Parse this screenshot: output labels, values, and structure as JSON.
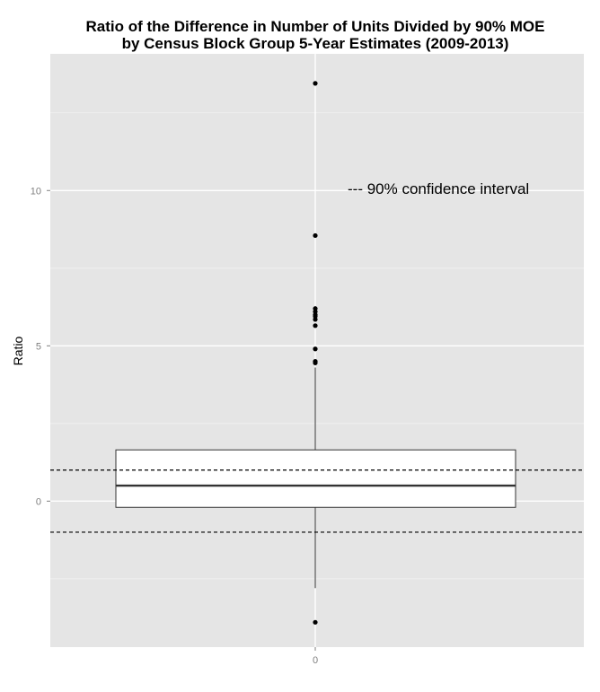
{
  "chart_data": {
    "type": "boxplot",
    "title_lines": [
      "Ratio of the Difference in Number of Units Divided by 90% MOE",
      "by Census Block Group 5-Year Estimates (2009-2013)"
    ],
    "xlabel": "",
    "ylabel": "Ratio",
    "categories": [
      "0"
    ],
    "y_ticks": [
      0,
      5,
      10
    ],
    "ylim": [
      -4.7,
      14.4
    ],
    "grid": true,
    "box": {
      "q1": -0.2,
      "median": 0.5,
      "q3": 1.65,
      "whisker_low": -2.8,
      "whisker_high": 4.3
    },
    "outliers": [
      13.45,
      8.55,
      6.2,
      6.1,
      6.0,
      5.95,
      5.85,
      5.65,
      4.9,
      4.5,
      4.45,
      -3.9
    ],
    "reference_lines": [
      1,
      -1
    ],
    "annotation": "--- 90% confidence interval"
  }
}
